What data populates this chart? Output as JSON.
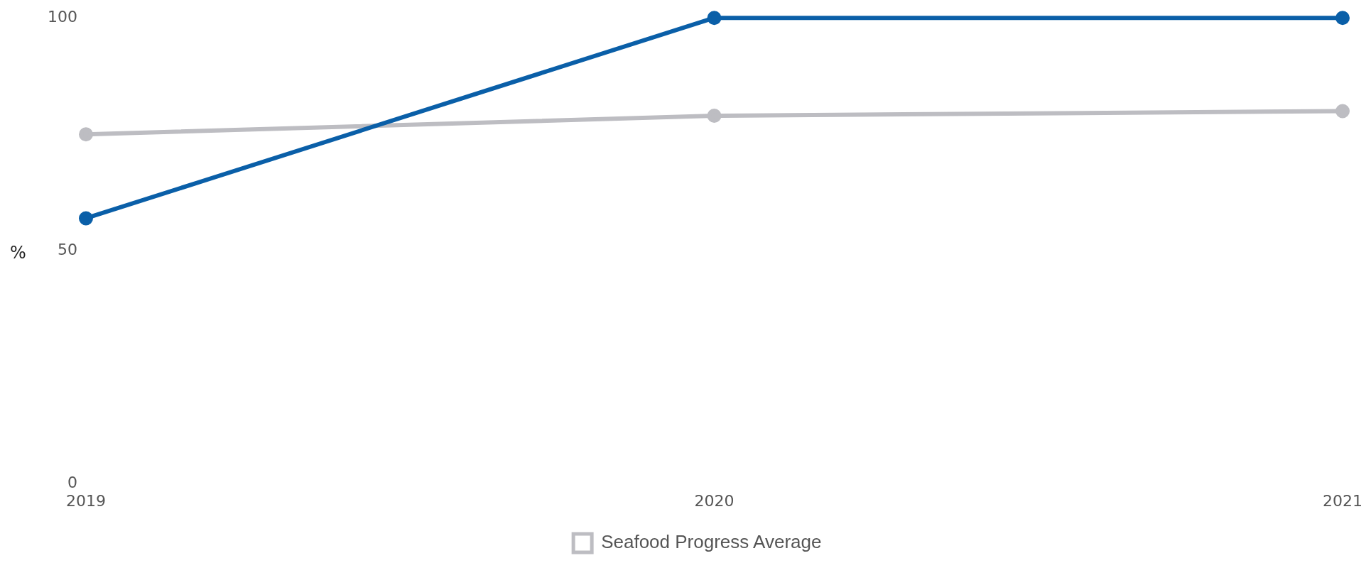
{
  "chart_data": {
    "type": "line",
    "ylabel": "%",
    "categories": [
      "2019",
      "2020",
      "2021"
    ],
    "series": [
      {
        "color": "#0a5fa8",
        "values": [
          57,
          100,
          100
        ]
      },
      {
        "name": "Seafood Progress Average",
        "color": "#bdbdc2",
        "values": [
          75,
          79,
          80
        ]
      }
    ],
    "ylim": [
      0,
      100
    ],
    "yticks": [
      0,
      50,
      100
    ],
    "grid": false,
    "legend": "bottom",
    "marker": "circle",
    "line_style": "solid"
  }
}
